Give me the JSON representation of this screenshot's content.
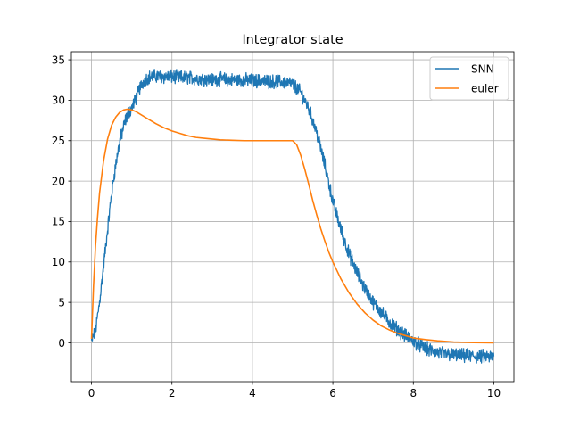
{
  "chart_data": {
    "type": "line",
    "title": "Integrator state",
    "xlabel": "",
    "ylabel": "",
    "xlim": [
      -0.5,
      10.5
    ],
    "ylim": [
      -4.8,
      36.0
    ],
    "xticks": [
      0,
      2,
      4,
      6,
      8,
      10
    ],
    "yticks": [
      0,
      5,
      10,
      15,
      20,
      25,
      30,
      35
    ],
    "grid": true,
    "legend_position": "top-right",
    "series": [
      {
        "name": "SNN",
        "color": "#1f77b4",
        "style": "noisy",
        "x": [
          0,
          0.1,
          0.2,
          0.3,
          0.4,
          0.5,
          0.6,
          0.7,
          0.8,
          0.9,
          1.0,
          1.1,
          1.2,
          1.3,
          1.4,
          1.6,
          1.8,
          2.0,
          2.2,
          2.4,
          2.6,
          2.8,
          3.0,
          3.2,
          3.4,
          3.6,
          3.8,
          4.0,
          4.2,
          4.4,
          4.6,
          4.8,
          5.0,
          5.2,
          5.4,
          5.6,
          5.8,
          6.0,
          6.2,
          6.4,
          6.6,
          6.8,
          7.0,
          7.2,
          7.4,
          7.6,
          7.8,
          8.0,
          8.2,
          8.4,
          8.6,
          8.8,
          9.0,
          9.2,
          9.4,
          9.6,
          9.8,
          10.0
        ],
        "y": [
          0.2,
          1.5,
          5.0,
          9.5,
          14.0,
          18.5,
          22.0,
          24.8,
          26.8,
          28.3,
          29.0,
          30.2,
          31.5,
          32.4,
          32.8,
          33.0,
          32.9,
          32.9,
          32.8,
          32.8,
          32.7,
          32.6,
          32.5,
          32.6,
          32.5,
          32.5,
          32.5,
          32.4,
          32.4,
          32.3,
          32.3,
          32.2,
          32.0,
          31.0,
          29.0,
          26.0,
          22.0,
          17.5,
          14.0,
          11.0,
          8.7,
          6.7,
          5.0,
          3.8,
          2.6,
          1.7,
          0.9,
          0.2,
          -0.4,
          -0.9,
          -1.2,
          -1.4,
          -1.5,
          -1.6,
          -1.6,
          -1.7,
          -1.7,
          -1.8
        ]
      },
      {
        "name": "euler",
        "color": "#ff7f0e",
        "style": "smooth",
        "x": [
          0,
          0.05,
          0.1,
          0.15,
          0.2,
          0.3,
          0.4,
          0.5,
          0.6,
          0.7,
          0.8,
          0.9,
          1.0,
          1.1,
          1.2,
          1.4,
          1.6,
          1.8,
          2.0,
          2.2,
          2.4,
          2.6,
          2.8,
          3.0,
          3.2,
          3.5,
          3.8,
          4.0,
          4.5,
          5.0,
          5.1,
          5.2,
          5.3,
          5.4,
          5.5,
          5.6,
          5.7,
          5.8,
          5.9,
          6.0,
          6.2,
          6.4,
          6.6,
          6.8,
          7.0,
          7.2,
          7.4,
          7.6,
          7.8,
          8.0,
          8.3,
          8.6,
          9.0,
          9.5,
          10.0
        ],
        "y": [
          0.5,
          7.0,
          12.0,
          15.5,
          18.5,
          22.5,
          25.2,
          26.9,
          27.9,
          28.5,
          28.8,
          28.9,
          28.8,
          28.6,
          28.3,
          27.7,
          27.1,
          26.6,
          26.2,
          25.9,
          25.6,
          25.4,
          25.3,
          25.2,
          25.1,
          25.05,
          25.0,
          25.0,
          25.0,
          25.0,
          24.5,
          23.2,
          21.5,
          19.6,
          17.6,
          15.8,
          14.1,
          12.6,
          11.2,
          10.0,
          7.9,
          6.2,
          4.8,
          3.7,
          2.8,
          2.1,
          1.6,
          1.2,
          0.9,
          0.6,
          0.4,
          0.25,
          0.1,
          0.03,
          0.0
        ]
      }
    ]
  }
}
